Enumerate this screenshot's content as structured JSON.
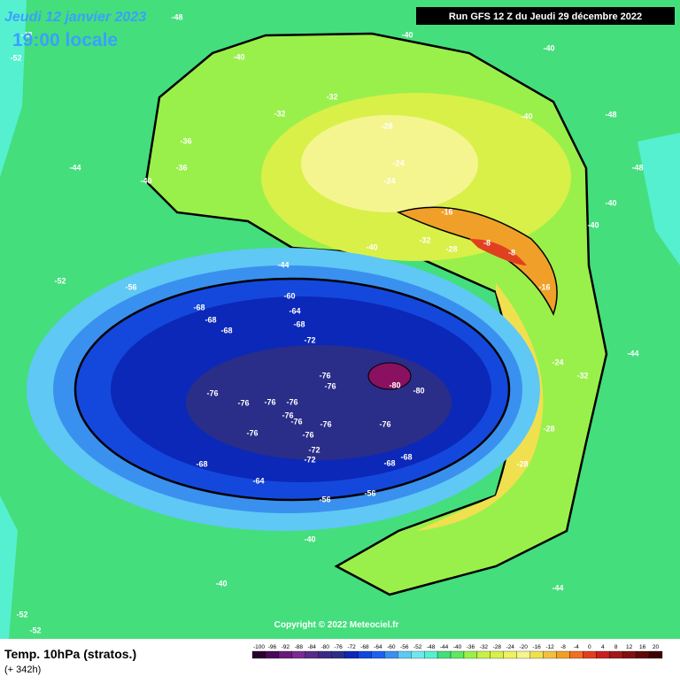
{
  "header": {
    "date": "Jeudi 12 janvier 2023",
    "time": "19:00 locale",
    "run": "Run GFS 12 Z du Jeudi 29 décembre 2022"
  },
  "copyright": "Copyright © 2022 Meteociel.fr",
  "footer": {
    "title": "Temp. 10hPa (stratos.)",
    "lead": "(+ 342h)"
  },
  "legend": {
    "ticks": [
      -100,
      -96,
      -92,
      -88,
      -84,
      -80,
      -76,
      -72,
      -68,
      -64,
      -60,
      -56,
      -52,
      -48,
      -44,
      -40,
      -36,
      -32,
      -28,
      -24,
      -20,
      -16,
      -12,
      -8,
      -4,
      0,
      4,
      8,
      12,
      16,
      20
    ]
  },
  "contour_labels": [
    "-68",
    "-68",
    "-68",
    "-64",
    "-68",
    "-72",
    "-76",
    "-76",
    "-76",
    "-76",
    "-76",
    "-76",
    "-76",
    "-76",
    "-76",
    "-76",
    "-76",
    "-76",
    "-80",
    "-80",
    "-72",
    "-72",
    "-68",
    "-64",
    "-68",
    "-68",
    "-56",
    "-56",
    "-60",
    "-44",
    "-52",
    "-56",
    "-40",
    "-40",
    "-32",
    "-32",
    "-28",
    "-24",
    "-24",
    "-16",
    "-8",
    "-8",
    "-16",
    "-24",
    "-32",
    "-28",
    "-28",
    "-36",
    "-36",
    "-40",
    "-40",
    "-32",
    "-28",
    "-44",
    "-48",
    "-48",
    "-40",
    "-48",
    "-48",
    "-44",
    "-44",
    "-40",
    "-40",
    "-52",
    "-52",
    "-40",
    "-40",
    "-40",
    "-52"
  ]
}
